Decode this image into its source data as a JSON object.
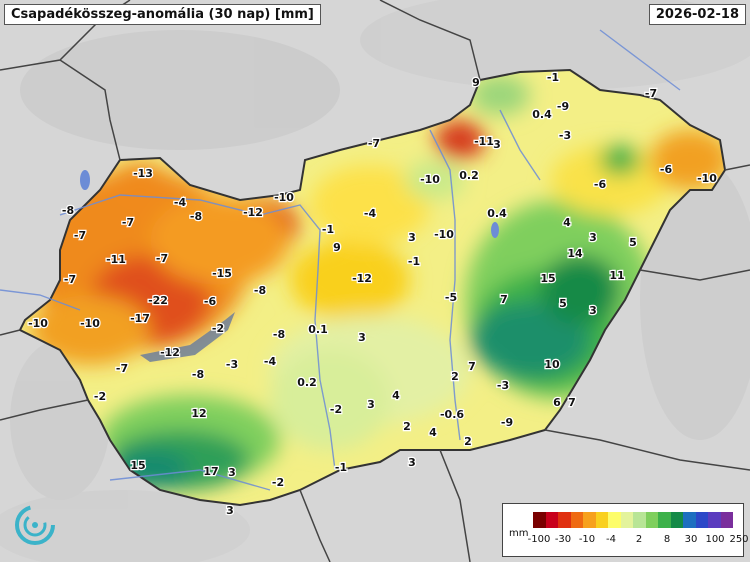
{
  "header": {
    "title": "Csapadékösszeg-anomália (30 nap) [mm]",
    "date": "2026-02-18"
  },
  "legend": {
    "unit": "mm",
    "colors": [
      "#7a0000",
      "#c8001c",
      "#e03010",
      "#ef6a12",
      "#f7a11d",
      "#f9d01f",
      "#fdfd6b",
      "#e3f39b",
      "#b8e596",
      "#7fcf5d",
      "#3db14a",
      "#148a47",
      "#1e6fc0",
      "#2d48c8",
      "#5b3cbf",
      "#7a2e9c"
    ],
    "ticks": [
      "-100",
      "-30",
      "-10",
      "-4",
      "2",
      "8",
      "30",
      "100",
      "250"
    ]
  },
  "stations": [
    {
      "label": "-13"
    },
    {
      "label": "-8"
    },
    {
      "label": "-7"
    },
    {
      "label": "-7"
    },
    {
      "label": "-4"
    },
    {
      "label": "-8"
    },
    {
      "label": "-12"
    },
    {
      "label": "-10"
    },
    {
      "label": "-11"
    },
    {
      "label": "-7"
    },
    {
      "label": "-7"
    },
    {
      "label": "-15"
    },
    {
      "label": "-22"
    },
    {
      "label": "-6"
    },
    {
      "label": "-8"
    },
    {
      "label": "-17"
    },
    {
      "label": "-10"
    },
    {
      "label": "-10"
    },
    {
      "label": "-2"
    },
    {
      "label": "-12"
    },
    {
      "label": "-7"
    },
    {
      "label": "-8"
    },
    {
      "label": "-3"
    },
    {
      "label": "-4"
    },
    {
      "label": "-8"
    },
    {
      "label": "-2"
    },
    {
      "label": "12"
    },
    {
      "label": "15"
    },
    {
      "label": "17"
    },
    {
      "label": "3"
    },
    {
      "label": "-2"
    },
    {
      "label": "3"
    },
    {
      "label": "-1"
    },
    {
      "label": "9"
    },
    {
      "label": "-4"
    },
    {
      "label": "-12"
    },
    {
      "label": "0.1"
    },
    {
      "label": "3"
    },
    {
      "label": "0.2"
    },
    {
      "label": "-2"
    },
    {
      "label": "3"
    },
    {
      "label": "4"
    },
    {
      "label": "2"
    },
    {
      "label": "-1"
    },
    {
      "label": "-7"
    },
    {
      "label": "-10"
    },
    {
      "label": "0.2"
    },
    {
      "label": "3"
    },
    {
      "label": "-1"
    },
    {
      "label": "-10"
    },
    {
      "label": "-5"
    },
    {
      "label": "0.4"
    },
    {
      "label": "9"
    },
    {
      "label": "-11"
    },
    {
      "label": "3"
    },
    {
      "label": "-1"
    },
    {
      "label": "-9"
    },
    {
      "label": "0.4"
    },
    {
      "label": "-3"
    },
    {
      "label": "-7"
    },
    {
      "label": "-6"
    },
    {
      "label": "-6"
    },
    {
      "label": "-10"
    },
    {
      "label": "4"
    },
    {
      "label": "3"
    },
    {
      "label": "5"
    },
    {
      "label": "14"
    },
    {
      "label": "15"
    },
    {
      "label": "11"
    },
    {
      "label": "7"
    },
    {
      "label": "5"
    },
    {
      "label": "3"
    },
    {
      "label": "7"
    },
    {
      "label": "2"
    },
    {
      "label": "10"
    },
    {
      "label": "-3"
    },
    {
      "label": "6"
    },
    {
      "label": "-0.6"
    },
    {
      "label": "-9"
    },
    {
      "label": "4"
    },
    {
      "label": "2"
    },
    {
      "label": "7"
    },
    {
      "label": "3"
    }
  ]
}
